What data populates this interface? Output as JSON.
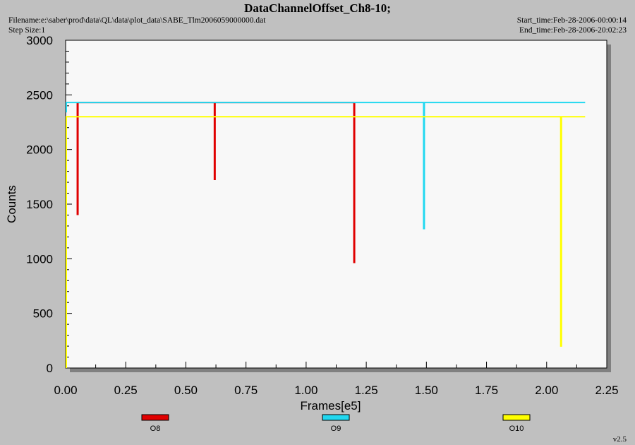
{
  "header": {
    "title": "DataChannelOffset_Ch8-10;",
    "filename": "Filename:e:\\saber\\prod\\data\\QL\\data\\plot_data\\SABE_Tlm2006059000000.dat",
    "step_size": "Step Size:1",
    "start_time": "Start_time:Feb-28-2006-00:00:14",
    "end_time": "End_time:Feb-28-2006-20:02:23"
  },
  "version": "v2.5",
  "chart_data": {
    "type": "line",
    "title": "DataChannelOffset_Ch8-10;",
    "xlabel": "Frames[e5]",
    "ylabel": "Counts",
    "xlim": [
      0,
      2.25
    ],
    "ylim": [
      0,
      3000
    ],
    "x_ticks": [
      "0.00",
      "0.25",
      "0.50",
      "0.75",
      "1.00",
      "1.25",
      "1.50",
      "1.75",
      "2.00",
      "2.25"
    ],
    "y_ticks": [
      "0",
      "500",
      "1000",
      "1500",
      "2000",
      "2500",
      "3000"
    ],
    "grid": false,
    "legend_position": "bottom",
    "series": [
      {
        "name": "O8",
        "color": "#e00000",
        "baseline": 2430,
        "x_range": [
          0.05,
          1.2
        ],
        "dips": [
          {
            "x": 0.05,
            "min": 1400
          },
          {
            "x": 0.62,
            "min": 1720
          },
          {
            "x": 1.2,
            "min": 960
          }
        ]
      },
      {
        "name": "O9",
        "color": "#22d8f0",
        "baseline": 2430,
        "x_range": [
          0.0,
          2.16
        ],
        "dips": [
          {
            "x": 1.49,
            "min": 1270
          }
        ]
      },
      {
        "name": "O10",
        "color": "#ffff00",
        "baseline": 2300,
        "x_range": [
          0.0,
          2.16
        ],
        "dips": [
          {
            "x": 2.06,
            "min": 195
          }
        ]
      }
    ]
  }
}
